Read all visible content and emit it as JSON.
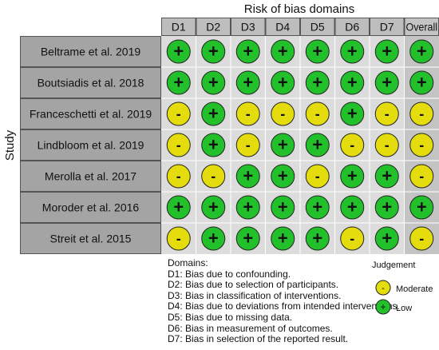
{
  "chart_data": {
    "type": "table",
    "title": "Risk of bias domains",
    "ylabel": "Study",
    "columns": [
      "D1",
      "D2",
      "D3",
      "D4",
      "D5",
      "D6",
      "D7",
      "Overall"
    ],
    "studies": [
      "Beltrame et al. 2019",
      "Boutsiadis et al. 2018",
      "Franceschetti et al. 2019",
      "Lindbloom et al. 2019",
      "Merolla et al. 2017",
      "Moroder et al. 2016",
      "Streit et al. 2015"
    ],
    "judgements": [
      [
        "+",
        "+",
        "+",
        "+",
        "+",
        "+",
        "+",
        "+"
      ],
      [
        "+",
        "+",
        "+",
        "+",
        "+",
        "+",
        "+",
        "+"
      ],
      [
        "-",
        "+",
        "-",
        "-",
        "-",
        "+",
        "-",
        "-"
      ],
      [
        "-",
        "+",
        "-",
        "+",
        "+",
        "-",
        "-",
        "-"
      ],
      [
        "-",
        "-",
        "+",
        "+",
        "-",
        "+",
        "+",
        "-"
      ],
      [
        "+",
        "+",
        "+",
        "+",
        "+",
        "+",
        "+",
        "+"
      ],
      [
        "-",
        "+",
        "+",
        "+",
        "+",
        "-",
        "+",
        "-"
      ]
    ],
    "colors": {
      "low": "#22c02a",
      "moderate": "#e4dc0c",
      "header_bg": "#bdbdbd",
      "study_bg": "#a4a4a4",
      "grid_bg": "#dcdcdc",
      "overall_bg": "#c4c4c4"
    }
  },
  "legend": {
    "domains_title": "Domains:",
    "domains": [
      "D1: Bias due to confounding.",
      "D2: Bias due to selection of participants.",
      "D3: Bias in classification of interventions.",
      "D4: Bias due to deviations from intended interventions.",
      "D5: Bias due to missing data.",
      "D6: Bias in measurement of outcomes.",
      "D7: Bias in selection of the reported result."
    ],
    "judgement_title": "Judgement",
    "judgement_items": [
      {
        "symbol": "-",
        "label": "Moderate",
        "color": "#e4dc0c"
      },
      {
        "symbol": "+",
        "label": "Low",
        "color": "#22c02a"
      }
    ]
  }
}
